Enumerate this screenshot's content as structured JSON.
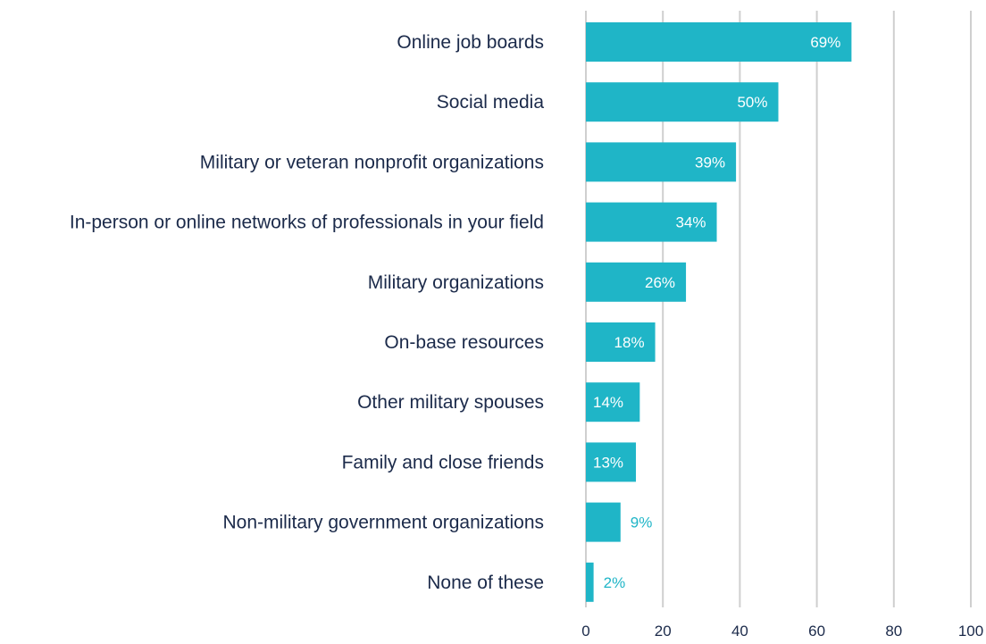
{
  "chart_data": {
    "type": "bar",
    "orientation": "horizontal",
    "categories": [
      "Online job boards",
      "Social media",
      "Military or veteran nonprofit organizations",
      "In-person or online networks of professionals in your field",
      "Military organizations",
      "On-base resources",
      "Other military spouses",
      "Family and close friends",
      "Non-military government organizations",
      "None of these"
    ],
    "values": [
      69,
      50,
      39,
      34,
      26,
      18,
      14,
      13,
      9,
      2
    ],
    "value_labels": [
      "69%",
      "50%",
      "39%",
      "34%",
      "26%",
      "18%",
      "14%",
      "13%",
      "9%",
      "2%"
    ],
    "xlim": [
      0,
      100
    ],
    "xticks": [
      0,
      20,
      40,
      60,
      80,
      100
    ],
    "xtick_labels": [
      "0",
      "20",
      "40",
      "60",
      "80",
      "100"
    ],
    "grid": true,
    "legend": "none",
    "colors": {
      "bar": "#1fb5c7",
      "bar_label_inside": "#ffffff",
      "bar_label_outside": "#1fb5c7",
      "category_text": "#1b2a4a",
      "gridline": "#cfcfcf"
    }
  }
}
